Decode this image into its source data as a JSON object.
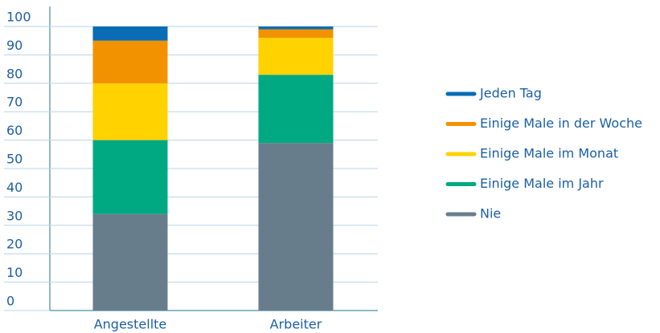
{
  "chart_data": {
    "type": "stacked-bar",
    "categories": [
      "Angestellte",
      "Arbeiter"
    ],
    "series": [
      {
        "name": "Jeden Tag",
        "color": "#0a6cb4",
        "values": [
          5,
          1
        ]
      },
      {
        "name": "Einige Male in der Woche",
        "color": "#f39200",
        "values": [
          15,
          3
        ]
      },
      {
        "name": "Einige Male im Monat",
        "color": "#ffd200",
        "values": [
          20,
          13
        ]
      },
      {
        "name": "Einige Male im Jahr",
        "color": "#00a982",
        "values": [
          26,
          24
        ]
      },
      {
        "name": "Nie",
        "color": "#687d8c",
        "values": [
          34,
          59
        ]
      }
    ],
    "ylim": [
      0,
      100
    ],
    "yticks": [
      0,
      10,
      20,
      30,
      40,
      50,
      60,
      70,
      80,
      90,
      100
    ],
    "grid": true,
    "legend": "right"
  }
}
